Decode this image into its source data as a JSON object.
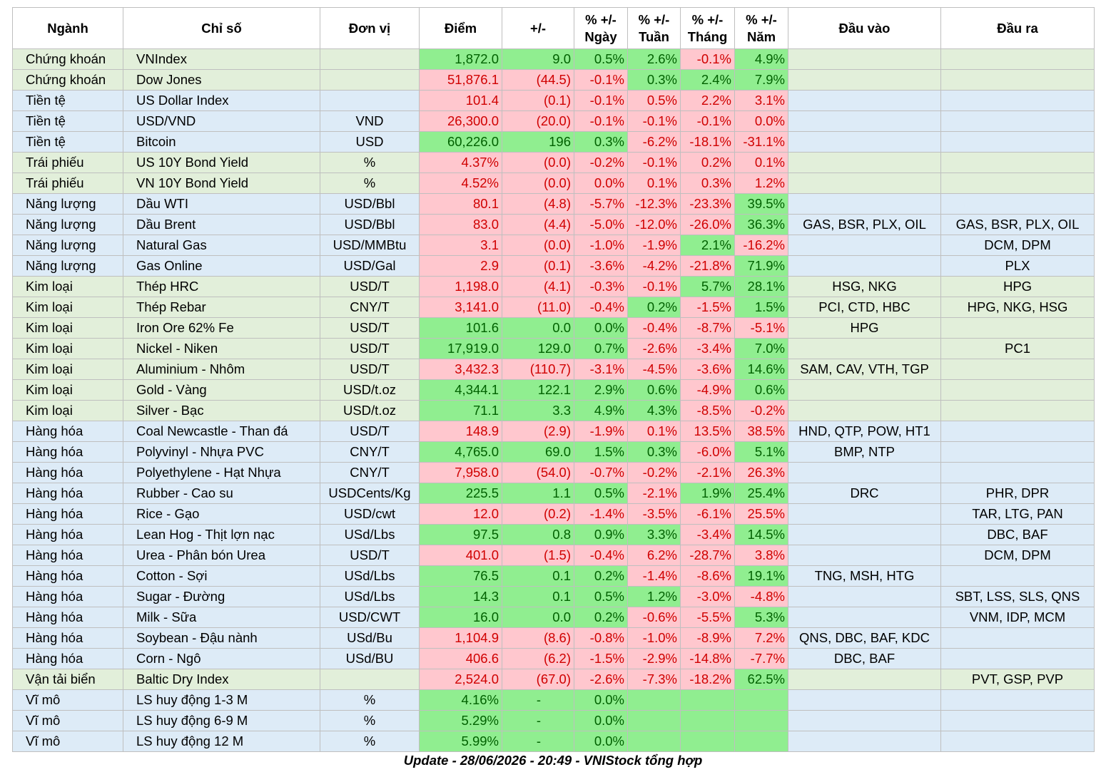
{
  "table": {
    "header": [
      "Ngành",
      "Chỉ số",
      "Đơn vị",
      "Điểm",
      "+/-",
      "% +/-\nNgày",
      "% +/-\nTuần",
      "% +/-\nTháng",
      "% +/-\nNăm",
      "Đầu vào",
      "Đầu ra"
    ],
    "palette": {
      "green": {
        "fill": "#90ee90",
        "text": "#006100"
      },
      "red": {
        "fill": "#ffc7ce",
        "text": "#d00000"
      }
    },
    "rows": [
      {
        "fill": "#e2efda",
        "cells": [
          "Chứng khoán",
          "VNIndex",
          null,
          "1,872.0",
          "9.0",
          "0.5%",
          "2.6%",
          "-0.1%",
          "4.9%",
          null,
          null
        ],
        "cell_fills": [
          "green",
          "green",
          "green",
          "green",
          "red",
          "green"
        ]
      },
      {
        "fill": "#e2efda",
        "cells": [
          "Chứng khoán",
          "Dow Jones",
          null,
          "51,876.1",
          "(44.5)",
          "-0.1%",
          "0.3%",
          "2.4%",
          "7.9%",
          null,
          null
        ],
        "cell_fills": [
          "red",
          "red",
          "red",
          "green",
          "green",
          "green"
        ]
      },
      {
        "fill": "#ddebf7",
        "cells": [
          "Tiền tệ",
          "US Dollar Index",
          null,
          "101.4",
          "(0.1)",
          "-0.1%",
          "0.5%",
          "2.2%",
          "3.1%",
          null,
          null
        ],
        "cell_fills": [
          "red",
          "red",
          "red",
          "red",
          "red",
          "red"
        ]
      },
      {
        "fill": "#ddebf7",
        "cells": [
          "Tiền tệ",
          "USD/VND",
          "VND",
          "26,300.0",
          "(20.0)",
          "-0.1%",
          "-0.1%",
          "-0.1%",
          "0.0%",
          null,
          null
        ],
        "cell_fills": [
          "red",
          "red",
          "red",
          "red",
          "red",
          "red"
        ]
      },
      {
        "fill": "#ddebf7",
        "cells": [
          "Tiền tệ",
          "Bitcoin",
          "USD",
          "60,226.0",
          "196",
          "0.3%",
          "-6.2%",
          "-18.1%",
          "-31.1%",
          null,
          null
        ],
        "cell_fills": [
          "green",
          "green",
          "green",
          "red",
          "red",
          "red"
        ]
      },
      {
        "fill": "#e2efda",
        "cells": [
          "Trái phiếu",
          "US 10Y Bond Yield",
          "%",
          "4.37%",
          "(0.0)",
          "-0.2%",
          "-0.1%",
          "0.2%",
          "0.1%",
          null,
          null
        ],
        "cell_fills": [
          "red",
          "red",
          "red",
          "red",
          "red",
          "red"
        ]
      },
      {
        "fill": "#e2efda",
        "cells": [
          "Trái phiếu",
          "VN 10Y Bond Yield",
          "%",
          "4.52%",
          "(0.0)",
          "0.0%",
          "0.1%",
          "0.3%",
          "1.2%",
          null,
          null
        ],
        "cell_fills": [
          "red",
          "red",
          "red",
          "red",
          "red",
          "red"
        ]
      },
      {
        "fill": "#ddebf7",
        "cells": [
          "Năng lượng",
          "Dầu WTI",
          "USD/Bbl",
          "80.1",
          "(4.8)",
          "-5.7%",
          "-12.3%",
          "-23.3%",
          "39.5%",
          null,
          null
        ],
        "cell_fills": [
          "red",
          "red",
          "red",
          "red",
          "red",
          "green"
        ]
      },
      {
        "fill": "#ddebf7",
        "cells": [
          "Năng lượng",
          "Dầu Brent",
          "USD/Bbl",
          "83.0",
          "(4.4)",
          "-5.0%",
          "-12.0%",
          "-26.0%",
          "36.3%",
          "GAS, BSR, PLX, OIL",
          "GAS, BSR, PLX, OIL"
        ],
        "cell_fills": [
          "red",
          "red",
          "red",
          "red",
          "red",
          "green"
        ]
      },
      {
        "fill": "#ddebf7",
        "cells": [
          "Năng lượng",
          "Natural Gas",
          "USD/MMBtu",
          "3.1",
          "(0.0)",
          "-1.0%",
          "-1.9%",
          "2.1%",
          "-16.2%",
          null,
          "DCM, DPM"
        ],
        "cell_fills": [
          "red",
          "red",
          "red",
          "red",
          "green",
          "red"
        ]
      },
      {
        "fill": "#ddebf7",
        "cells": [
          "Năng lượng",
          "Gas Online",
          "USD/Gal",
          "2.9",
          "(0.1)",
          "-3.6%",
          "-4.2%",
          "-21.8%",
          "71.9%",
          null,
          "PLX"
        ],
        "cell_fills": [
          "red",
          "red",
          "red",
          "red",
          "red",
          "green"
        ]
      },
      {
        "fill": "#e2efda",
        "cells": [
          "Kim loại",
          "Thép HRC",
          "USD/T",
          "1,198.0",
          "(4.1)",
          "-0.3%",
          "-0.1%",
          "5.7%",
          "28.1%",
          "HSG, NKG",
          "HPG"
        ],
        "cell_fills": [
          "red",
          "red",
          "red",
          "red",
          "green",
          "green"
        ]
      },
      {
        "fill": "#e2efda",
        "cells": [
          "Kim loại",
          "Thép Rebar",
          "CNY/T",
          "3,141.0",
          "(11.0)",
          "-0.4%",
          "0.2%",
          "-1.5%",
          "1.5%",
          "PCI, CTD, HBC",
          "HPG, NKG, HSG"
        ],
        "cell_fills": [
          "red",
          "red",
          "red",
          "green",
          "red",
          "green"
        ]
      },
      {
        "fill": "#e2efda",
        "cells": [
          "Kim loại",
          "Iron Ore 62% Fe",
          "USD/T",
          "101.6",
          "0.0",
          "0.0%",
          "-0.4%",
          "-8.7%",
          "-5.1%",
          "HPG",
          null
        ],
        "cell_fills": [
          "green",
          "green",
          "green",
          "red",
          "red",
          "red"
        ]
      },
      {
        "fill": "#e2efda",
        "cells": [
          "Kim loại",
          "Nickel - Niken",
          "USD/T",
          "17,919.0",
          "129.0",
          "0.7%",
          "-2.6%",
          "-3.4%",
          "7.0%",
          null,
          "PC1"
        ],
        "cell_fills": [
          "green",
          "green",
          "green",
          "red",
          "red",
          "green"
        ]
      },
      {
        "fill": "#e2efda",
        "cells": [
          "Kim loại",
          "Aluminium - Nhôm",
          "USD/T",
          "3,432.3",
          "(110.7)",
          "-3.1%",
          "-4.5%",
          "-3.6%",
          "14.6%",
          "SAM, CAV, VTH, TGP",
          null
        ],
        "cell_fills": [
          "red",
          "red",
          "red",
          "red",
          "red",
          "green"
        ]
      },
      {
        "fill": "#e2efda",
        "cells": [
          "Kim loại",
          "Gold - Vàng",
          "USD/t.oz",
          "4,344.1",
          "122.1",
          "2.9%",
          "0.6%",
          "-4.9%",
          "0.6%",
          null,
          null
        ],
        "cell_fills": [
          "green",
          "green",
          "green",
          "green",
          "red",
          "green"
        ]
      },
      {
        "fill": "#e2efda",
        "cells": [
          "Kim loại",
          "Silver - Bạc",
          "USD/t.oz",
          "71.1",
          "3.3",
          "4.9%",
          "4.3%",
          "-8.5%",
          "-0.2%",
          null,
          null
        ],
        "cell_fills": [
          "green",
          "green",
          "green",
          "green",
          "red",
          "red"
        ]
      },
      {
        "fill": "#ddebf7",
        "cells": [
          "Hàng hóa",
          "Coal Newcastle - Than đá",
          "USD/T",
          "148.9",
          "(2.9)",
          "-1.9%",
          "0.1%",
          "13.5%",
          "38.5%",
          "HND, QTP, POW, HT1",
          null
        ],
        "cell_fills": [
          "red",
          "red",
          "red",
          "red",
          "red",
          "red"
        ]
      },
      {
        "fill": "#ddebf7",
        "cells": [
          "Hàng hóa",
          "Polyvinyl - Nhựa PVC",
          "CNY/T",
          "4,765.0",
          "69.0",
          "1.5%",
          "0.3%",
          "-6.0%",
          "5.1%",
          "BMP, NTP",
          null
        ],
        "cell_fills": [
          "green",
          "green",
          "green",
          "green",
          "red",
          "green"
        ]
      },
      {
        "fill": "#ddebf7",
        "cells": [
          "Hàng hóa",
          "Polyethylene - Hạt Nhựa",
          "CNY/T",
          "7,958.0",
          "(54.0)",
          "-0.7%",
          "-0.2%",
          "-2.1%",
          "26.3%",
          null,
          null
        ],
        "cell_fills": [
          "red",
          "red",
          "red",
          "red",
          "red",
          "red"
        ]
      },
      {
        "fill": "#ddebf7",
        "cells": [
          "Hàng hóa",
          "Rubber - Cao su",
          "USDCents/Kg",
          "225.5",
          "1.1",
          "0.5%",
          "-2.1%",
          "1.9%",
          "25.4%",
          "DRC",
          "PHR, DPR"
        ],
        "cell_fills": [
          "green",
          "green",
          "green",
          "red",
          "green",
          "green"
        ]
      },
      {
        "fill": "#ddebf7",
        "cells": [
          "Hàng hóa",
          "Rice - Gạo",
          "USD/cwt",
          "12.0",
          "(0.2)",
          "-1.4%",
          "-3.5%",
          "-6.1%",
          "25.5%",
          null,
          "TAR, LTG, PAN"
        ],
        "cell_fills": [
          "red",
          "red",
          "red",
          "red",
          "red",
          "red"
        ]
      },
      {
        "fill": "#ddebf7",
        "cells": [
          "Hàng hóa",
          "Lean Hog - Thịt lợn nạc",
          "USd/Lbs",
          "97.5",
          "0.8",
          "0.9%",
          "3.3%",
          "-3.4%",
          "14.5%",
          null,
          "DBC, BAF"
        ],
        "cell_fills": [
          "green",
          "green",
          "green",
          "green",
          "red",
          "green"
        ]
      },
      {
        "fill": "#ddebf7",
        "cells": [
          "Hàng hóa",
          "Urea - Phân bón Urea",
          "USD/T",
          "401.0",
          "(1.5)",
          "-0.4%",
          "6.2%",
          "-28.7%",
          "3.8%",
          null,
          "DCM, DPM"
        ],
        "cell_fills": [
          "red",
          "red",
          "red",
          "red",
          "red",
          "red"
        ]
      },
      {
        "fill": "#ddebf7",
        "cells": [
          "Hàng hóa",
          "Cotton - Sợi",
          "USd/Lbs",
          "76.5",
          "0.1",
          "0.2%",
          "-1.4%",
          "-8.6%",
          "19.1%",
          "TNG, MSH, HTG",
          null
        ],
        "cell_fills": [
          "green",
          "green",
          "green",
          "red",
          "red",
          "green"
        ]
      },
      {
        "fill": "#ddebf7",
        "cells": [
          "Hàng hóa",
          "Sugar - Đường",
          "USd/Lbs",
          "14.3",
          "0.1",
          "0.5%",
          "1.2%",
          "-3.0%",
          "-4.8%",
          null,
          "SBT, LSS, SLS, QNS"
        ],
        "cell_fills": [
          "green",
          "green",
          "green",
          "green",
          "red",
          "red"
        ]
      },
      {
        "fill": "#ddebf7",
        "cells": [
          "Hàng hóa",
          "Milk - Sữa",
          "USD/CWT",
          "16.0",
          "0.0",
          "0.2%",
          "-0.6%",
          "-5.5%",
          "5.3%",
          null,
          "VNM, IDP, MCM"
        ],
        "cell_fills": [
          "green",
          "green",
          "green",
          "red",
          "red",
          "green"
        ]
      },
      {
        "fill": "#ddebf7",
        "cells": [
          "Hàng hóa",
          "Soybean - Đậu nành",
          "USd/Bu",
          "1,104.9",
          "(8.6)",
          "-0.8%",
          "-1.0%",
          "-8.9%",
          "7.2%",
          "QNS, DBC, BAF, KDC",
          null
        ],
        "cell_fills": [
          "red",
          "red",
          "red",
          "red",
          "red",
          "red"
        ]
      },
      {
        "fill": "#ddebf7",
        "cells": [
          "Hàng hóa",
          "Corn - Ngô",
          "USd/BU",
          "406.6",
          "(6.2)",
          "-1.5%",
          "-2.9%",
          "-14.8%",
          "-7.7%",
          "DBC, BAF",
          null
        ],
        "cell_fills": [
          "red",
          "red",
          "red",
          "red",
          "red",
          "red"
        ]
      },
      {
        "fill": "#e2efda",
        "cells": [
          "Vận tải biển",
          "Baltic Dry Index",
          null,
          "2,524.0",
          "(67.0)",
          "-2.6%",
          "-7.3%",
          "-18.2%",
          "62.5%",
          null,
          "PVT, GSP, PVP"
        ],
        "cell_fills": [
          "red",
          "red",
          "red",
          "red",
          "red",
          "green"
        ]
      },
      {
        "fill": "#ddebf7",
        "cells": [
          "Vĩ mô",
          "LS huy động 1-3 M",
          "%",
          "4.16%",
          "-",
          "0.0%",
          null,
          null,
          null,
          null,
          null
        ],
        "cell_fills": [
          "green",
          "green",
          "green",
          "green",
          "green",
          "green"
        ]
      },
      {
        "fill": "#ddebf7",
        "cells": [
          "Vĩ mô",
          "LS huy động 6-9 M",
          "%",
          "5.29%",
          "-",
          "0.0%",
          null,
          null,
          null,
          null,
          null
        ],
        "cell_fills": [
          "green",
          "green",
          "green",
          "green",
          "green",
          "green"
        ]
      },
      {
        "fill": "#ddebf7",
        "cells": [
          "Vĩ mô",
          "LS huy động 12 M",
          "%",
          "5.99%",
          "-",
          "0.0%",
          null,
          null,
          null,
          null,
          null
        ],
        "cell_fills": [
          "green",
          "green",
          "green",
          "green",
          "green",
          "green"
        ]
      }
    ]
  },
  "footer": "Update - 28/06/2026 - 20:49 - VNIStock tổng hợp"
}
